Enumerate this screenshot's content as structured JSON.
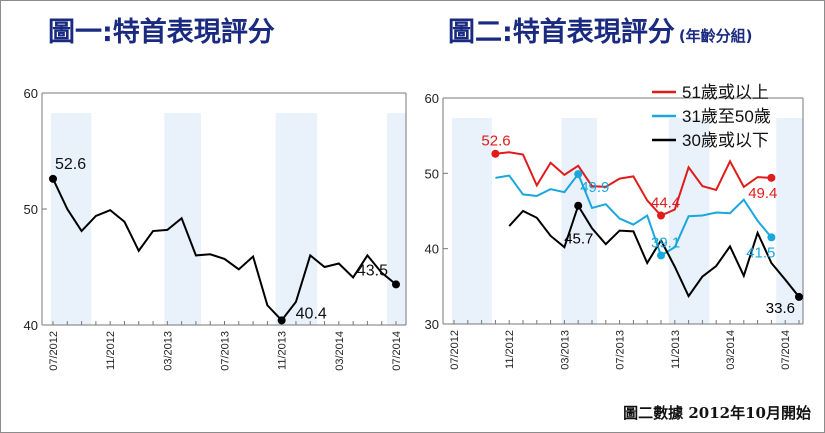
{
  "titles": {
    "left": "圖一:特首表現評分",
    "right": "圖二:特首表現評分",
    "right_sub": "(年齡分組)"
  },
  "footnote": "圖二數據 2012年10月開始",
  "colors": {
    "overall": "#000000",
    "age51": "#e01b1b",
    "age31": "#19a7dd",
    "age30": "#000000",
    "band": "#e9f1fb",
    "title": "#1a2a80"
  },
  "chart_data": [
    {
      "type": "line",
      "title": "圖一:特首表現評分",
      "ylim": [
        40,
        60
      ],
      "yticks": [
        "40",
        "50",
        "60"
      ],
      "x_tick_labels": [
        "07/2012",
        "11/2012",
        "03/2013",
        "07/2013",
        "11/2013",
        "03/2014",
        "07/2014"
      ],
      "x_tick_index": [
        0,
        4,
        8,
        12,
        16,
        20,
        24
      ],
      "grid": false,
      "series": [
        {
          "values": [
            52.6,
            50.0,
            48.1,
            49.4,
            49.9,
            48.9,
            46.4,
            48.1,
            48.2,
            49.2,
            46.0,
            46.1,
            45.7,
            44.8,
            45.9,
            41.7,
            40.4,
            42.0,
            46.0,
            45.0,
            45.3,
            44.1,
            46.0,
            44.5,
            43.5
          ]
        }
      ],
      "annotations": [
        {
          "label": "52.6",
          "index": 0
        },
        {
          "label": "40.4",
          "index": 16
        },
        {
          "label": "43.5",
          "index": 24
        }
      ]
    },
    {
      "type": "line",
      "title": "圖二:特首表現評分",
      "subtitle": "(年齡分組)",
      "ylim": [
        30,
        60
      ],
      "yticks": [
        "30",
        "40",
        "50",
        "60"
      ],
      "x_tick_labels": [
        "07/2012",
        "11/2012",
        "03/2013",
        "07/2013",
        "11/2013",
        "03/2014",
        "07/2014"
      ],
      "x_tick_index": [
        0,
        4,
        8,
        12,
        16,
        20,
        24
      ],
      "legend_position": "top-right",
      "grid": false,
      "series": [
        {
          "name": "51歲或以上",
          "start_index": 3,
          "values": [
            52.6,
            52.8,
            52.5,
            48.4,
            51.4,
            49.8,
            51.0,
            48.3,
            48.2,
            49.3,
            49.6,
            46.4,
            44.4,
            45.2,
            50.8,
            48.3,
            47.8,
            51.6,
            48.2,
            49.5,
            49.4
          ]
        },
        {
          "name": "31歲至50歲",
          "start_index": 3,
          "values": [
            49.4,
            49.7,
            47.2,
            47.0,
            47.9,
            47.5,
            49.9,
            45.4,
            45.9,
            44.0,
            43.2,
            44.4,
            39.1,
            40.2,
            44.3,
            44.4,
            44.8,
            44.7,
            46.5,
            43.7,
            41.5
          ]
        },
        {
          "name": "30歲或以下",
          "start_index": 4,
          "values": [
            43.0,
            45.0,
            44.1,
            41.7,
            40.2,
            45.7,
            42.7,
            40.6,
            42.4,
            42.3,
            38.1,
            41.1,
            37.6,
            33.7,
            36.3,
            37.7,
            40.3,
            36.4,
            42.1,
            38.1,
            35.9,
            33.6
          ]
        }
      ],
      "annotations": [
        {
          "label": "52.6",
          "series": 0,
          "index": 3
        },
        {
          "label": "44.4",
          "series": 0,
          "index": 15
        },
        {
          "label": "49.4",
          "series": 0,
          "index": 23
        },
        {
          "label": "49.9",
          "series": 1,
          "index": 9
        },
        {
          "label": "39.1",
          "series": 1,
          "index": 15
        },
        {
          "label": "41.5",
          "series": 1,
          "index": 23
        },
        {
          "label": "45.7",
          "series": 2,
          "index": 9
        },
        {
          "label": "33.6",
          "series": 2,
          "index": 25
        }
      ]
    }
  ]
}
